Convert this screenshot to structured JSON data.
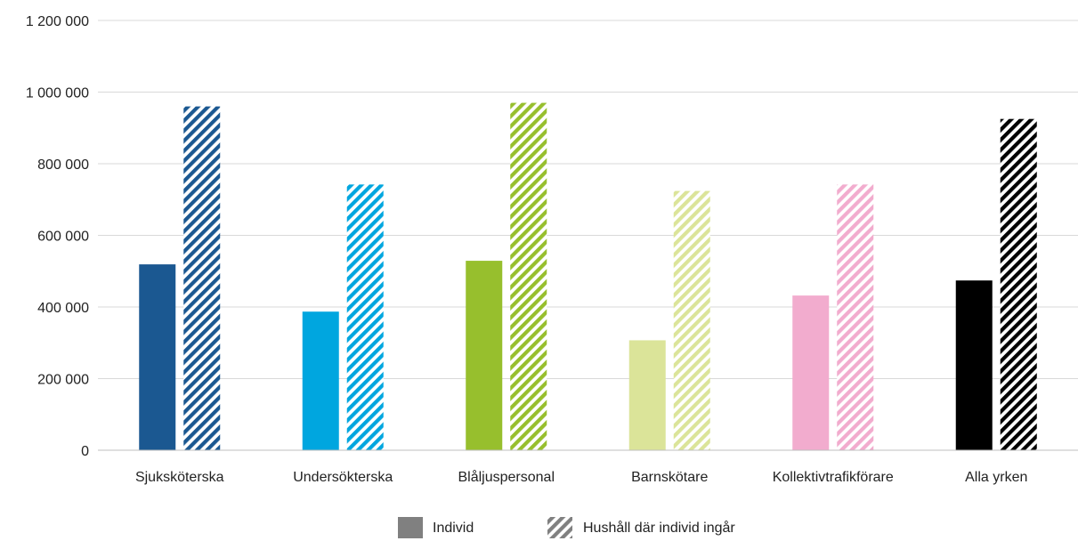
{
  "chart_data": {
    "type": "bar",
    "categories": [
      "Sjuksköterska",
      "Undersökterska",
      "Blåljuspersonal",
      "Barnskötare",
      "Kollektivtrafikförare",
      "Alla yrken"
    ],
    "colors": [
      "#1b5891",
      "#00a6df",
      "#97bf2d",
      "#dbe499",
      "#f2acce",
      "#000000"
    ],
    "series": [
      {
        "name": "Individ",
        "style": "solid",
        "values": [
          519000,
          387000,
          529000,
          307000,
          432000,
          474000
        ]
      },
      {
        "name": "Hushåll där individ ingår",
        "style": "hatched",
        "values": [
          960000,
          742000,
          970000,
          724000,
          742000,
          925000
        ]
      }
    ],
    "ylim": [
      0,
      1200000
    ],
    "yticks": [
      0,
      200000,
      400000,
      600000,
      800000,
      1000000,
      1200000
    ],
    "ytick_labels": [
      "0",
      "200 000",
      "400 000",
      "600 000",
      "800 000",
      "1 000 000",
      "1 200 000"
    ],
    "grid": true,
    "legend_position": "bottom-center",
    "legend_swatch_color": "#808080"
  }
}
